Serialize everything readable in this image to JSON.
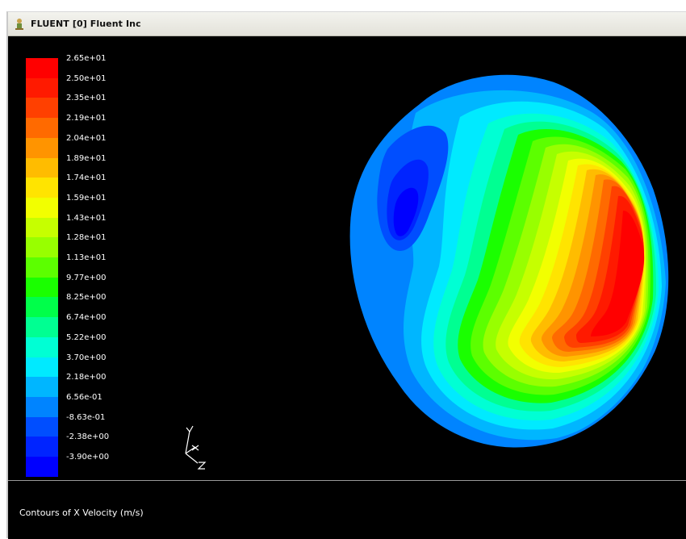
{
  "window": {
    "title": "FLUENT [0] Fluent Inc",
    "icon": "fluent-app-icon"
  },
  "legend": {
    "levels": [
      {
        "label": "2.65e+01",
        "color": "#ff0000"
      },
      {
        "label": "2.50e+01",
        "color": "#ff1a00"
      },
      {
        "label": "2.35e+01",
        "color": "#ff4000"
      },
      {
        "label": "2.19e+01",
        "color": "#ff6a00"
      },
      {
        "label": "2.04e+01",
        "color": "#ff9400"
      },
      {
        "label": "1.89e+01",
        "color": "#ffbc00"
      },
      {
        "label": "1.74e+01",
        "color": "#ffe400"
      },
      {
        "label": "1.59e+01",
        "color": "#f2ff00"
      },
      {
        "label": "1.43e+01",
        "color": "#c6ff00"
      },
      {
        "label": "1.28e+01",
        "color": "#98ff00"
      },
      {
        "label": "1.13e+01",
        "color": "#5cff00"
      },
      {
        "label": "9.77e+00",
        "color": "#1aff00"
      },
      {
        "label": "8.25e+00",
        "color": "#00ff4a"
      },
      {
        "label": "6.74e+00",
        "color": "#00ff92"
      },
      {
        "label": "5.22e+00",
        "color": "#00ffd4"
      },
      {
        "label": "3.70e+00",
        "color": "#00eaff"
      },
      {
        "label": "2.18e+00",
        "color": "#00b6ff"
      },
      {
        "label": "6.56e-01",
        "color": "#0084ff"
      },
      {
        "label": "-8.63e-01",
        "color": "#004eff"
      },
      {
        "label": "-2.38e+00",
        "color": "#0024ff"
      },
      {
        "label": "-3.90e+00",
        "color": "#0000ff"
      }
    ]
  },
  "axes_triad": {
    "x": "X",
    "y": "Y",
    "z": "Z"
  },
  "console": {
    "caption": "Contours of X Velocity (m/s)"
  }
}
